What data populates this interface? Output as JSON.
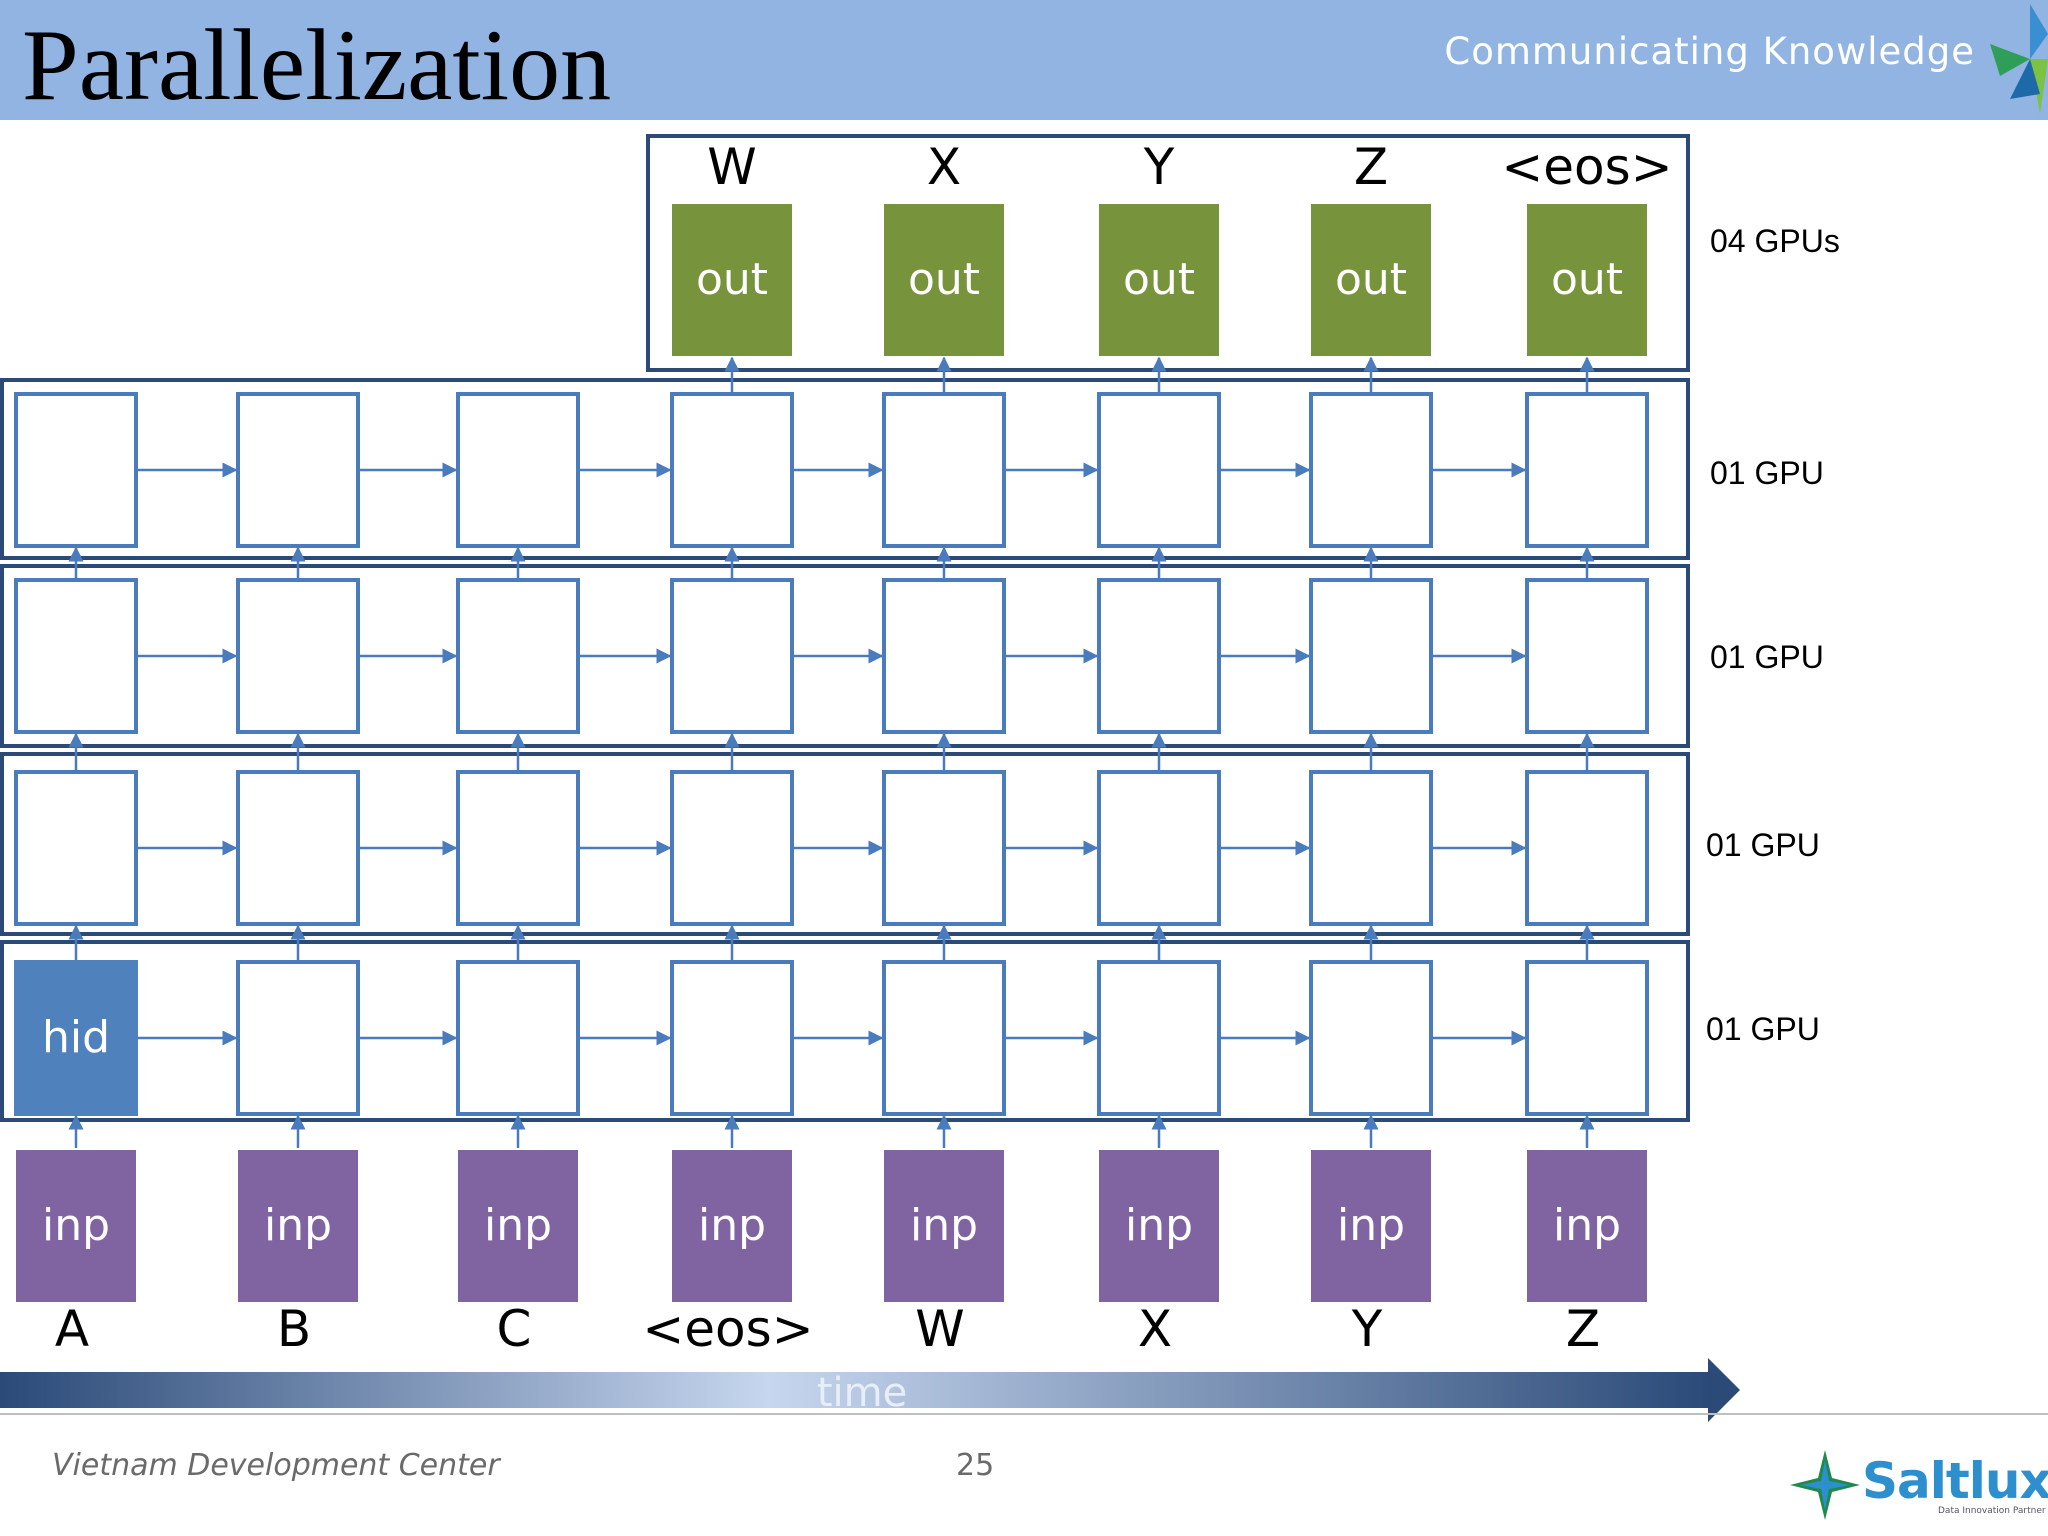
{
  "header": {
    "title": "Parallelization",
    "tagline": "Communicating Knowledge",
    "logo_icon": "saltlux-star-icon"
  },
  "diagram": {
    "output_tokens": [
      "W",
      "X",
      "Y",
      "Z",
      "<eos>"
    ],
    "output_box_label": "out",
    "hidden_first_label": "hid",
    "input_box_label": "inp",
    "input_tokens": [
      "A",
      "B",
      "C",
      "<eos>",
      "W",
      "X",
      "Y",
      "Z"
    ],
    "gpu_labels": [
      "04 GPUs",
      "01 GPU",
      "01 GPU",
      "01 GPU",
      "01 GPU"
    ],
    "time_label": "time",
    "colors": {
      "cell_border": "#4a7bbd",
      "row_border": "#2b4a78",
      "out_fill": "#77933c",
      "inp_fill": "#8064a2",
      "hid_fill": "#4f81bd",
      "arrow": "#4a7bbd"
    }
  },
  "footer": {
    "center": "Vietnam Development Center",
    "page_number": "25",
    "brand": "Saltlux",
    "brand_sub": "Data Innovation Partner"
  }
}
